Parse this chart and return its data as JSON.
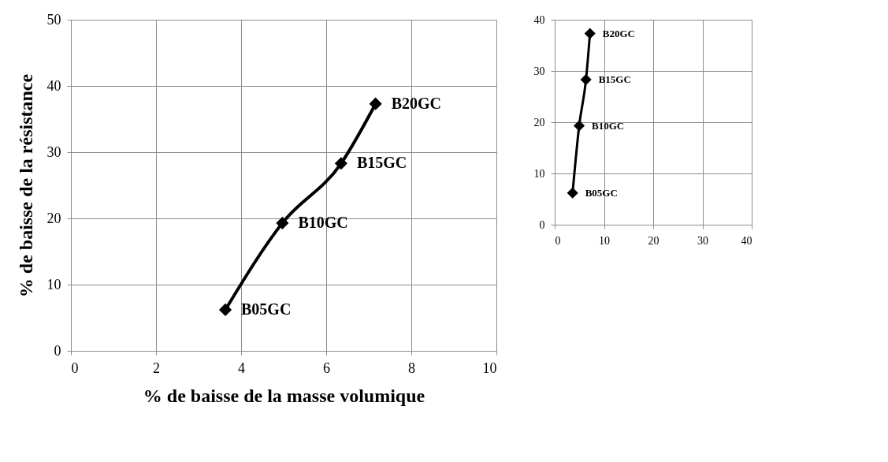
{
  "chart_data": [
    {
      "type": "line",
      "xlabel": "% de baisse de la masse volumique",
      "ylabel": "% de baisse de la résistance",
      "x": [
        3.63,
        4.97,
        6.35,
        7.16
      ],
      "series": [
        {
          "color": "#000000",
          "values": [
            6.2,
            19.3,
            28.3,
            37.3
          ]
        }
      ],
      "marker": "diamond",
      "line_style": "solid",
      "xlim": [
        0,
        10
      ],
      "xticks": [
        0,
        2,
        4,
        6,
        8,
        10
      ],
      "ylim": [
        0,
        50
      ],
      "yticks": [
        0,
        10,
        20,
        30,
        40,
        50
      ],
      "grid": true,
      "annotations": [
        {
          "text": "B05GC",
          "x": 3.63,
          "y": 6.2
        },
        {
          "text": "B10GC",
          "x": 4.97,
          "y": 19.3
        },
        {
          "text": "B15GC",
          "x": 6.35,
          "y": 28.3
        },
        {
          "text": "B20GC",
          "x": 7.16,
          "y": 37.3
        }
      ]
    },
    {
      "type": "line",
      "x": [
        3.63,
        4.97,
        6.35,
        7.16
      ],
      "series": [
        {
          "color": "#000000",
          "values": [
            6.2,
            19.3,
            28.3,
            37.3
          ]
        }
      ],
      "marker": "diamond",
      "line_style": "solid",
      "xlim": [
        0,
        40
      ],
      "xticks": [
        0,
        10,
        20,
        30,
        40
      ],
      "ylim": [
        0,
        40
      ],
      "yticks": [
        0,
        10,
        20,
        30,
        40
      ],
      "grid": true,
      "annotations": [
        {
          "text": "B05GC",
          "x": 3.63,
          "y": 6.2
        },
        {
          "text": "B10GC",
          "x": 4.97,
          "y": 19.3
        },
        {
          "text": "B15GC",
          "x": 6.35,
          "y": 28.3
        },
        {
          "text": "B20GC",
          "x": 7.16,
          "y": 37.3
        }
      ]
    }
  ]
}
